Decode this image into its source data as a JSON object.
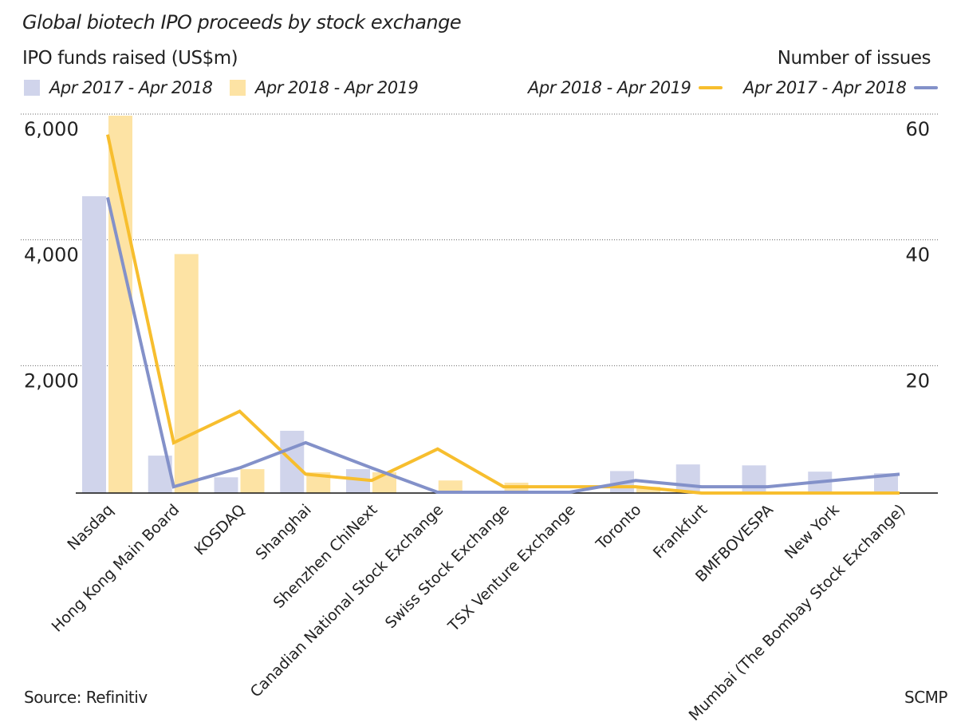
{
  "chart_data": {
    "type": "bar+line",
    "title": "Global biotech IPO proceeds by stock exchange",
    "ylabel_left": "IPO funds raised (US$m)",
    "ylabel_right": "Number of issues",
    "ylim_left": [
      0,
      6000
    ],
    "yticks_left": [
      "2,000",
      "4,000",
      "6,000"
    ],
    "ylim_right": [
      0,
      60
    ],
    "yticks_right": [
      "20",
      "40",
      "60"
    ],
    "grid": true,
    "categories": [
      "Nasdaq",
      "Hong Kong Main Board",
      "KOSDAQ",
      "Shanghai",
      "Shenzhen ChiNext",
      "Canadian National Stock Exchange",
      "Swiss Stock Exchange",
      "TSX Venture Exchange",
      "Toronto",
      "Frankfurt",
      "BMFBOVESPA",
      "New York",
      "Mumbai (The Bombay Stock Exchange)"
    ],
    "bar_series": [
      {
        "name": "Apr 2017 - Apr 2018",
        "color": "#d0d4eb",
        "values": [
          4720,
          595,
          250,
          990,
          380,
          0,
          0,
          0,
          350,
          455,
          440,
          340,
          315
        ]
      },
      {
        "name": "Apr 2018 - Apr 2019",
        "color": "#fde3a4",
        "values": [
          6000,
          3800,
          380,
          330,
          330,
          200,
          165,
          0,
          100,
          0,
          0,
          0,
          0
        ]
      }
    ],
    "line_series": [
      {
        "name": "Apr 2018 - Apr 2019",
        "color": "#f7be2e",
        "values": [
          57,
          8,
          13,
          3,
          2,
          7,
          1,
          1,
          1,
          0,
          0,
          0,
          0
        ]
      },
      {
        "name": "Apr 2017 - Apr 2018",
        "color": "#8391c9",
        "values": [
          47,
          1,
          4,
          8,
          4,
          0,
          0,
          0,
          2,
          1,
          1,
          2,
          3
        ]
      }
    ]
  },
  "footer": {
    "source": "Source: Refinitiv",
    "credit": "SCMP"
  }
}
